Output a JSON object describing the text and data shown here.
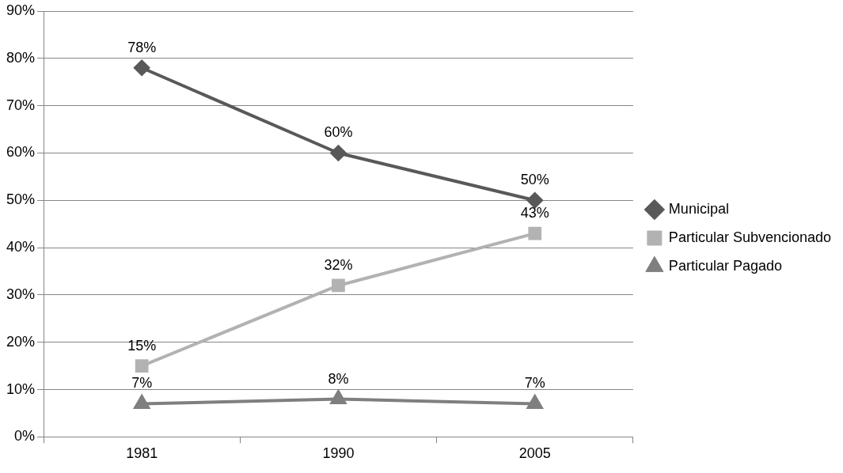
{
  "chart_data": {
    "type": "line",
    "categories": [
      "1981",
      "1990",
      "2005"
    ],
    "series": [
      {
        "name": "Municipal",
        "color": "#595959",
        "marker": "diamond",
        "values": [
          78,
          60,
          50
        ],
        "value_labels": [
          "78%",
          "60%",
          "50%"
        ]
      },
      {
        "name": "Particular Subvencionado",
        "color": "#b2b2b2",
        "marker": "square",
        "values": [
          15,
          32,
          43
        ],
        "value_labels": [
          "15%",
          "32%",
          "43%"
        ]
      },
      {
        "name": "Particular Pagado",
        "color": "#7f7f7f",
        "marker": "triangle",
        "values": [
          7,
          8,
          7
        ],
        "value_labels": [
          "7%",
          "8%",
          "7%"
        ]
      }
    ],
    "ylim": [
      0,
      90
    ],
    "yticks": [
      {
        "value": 0,
        "label": "0%"
      },
      {
        "value": 10,
        "label": "10%"
      },
      {
        "value": 20,
        "label": "20%"
      },
      {
        "value": 30,
        "label": "30%"
      },
      {
        "value": 40,
        "label": "40%"
      },
      {
        "value": 50,
        "label": "50%"
      },
      {
        "value": 60,
        "label": "60%"
      },
      {
        "value": 70,
        "label": "70%"
      },
      {
        "value": 80,
        "label": "80%"
      },
      {
        "value": 90,
        "label": "90%"
      }
    ],
    "grid": "y",
    "legend": "right",
    "line_style": "solid"
  }
}
